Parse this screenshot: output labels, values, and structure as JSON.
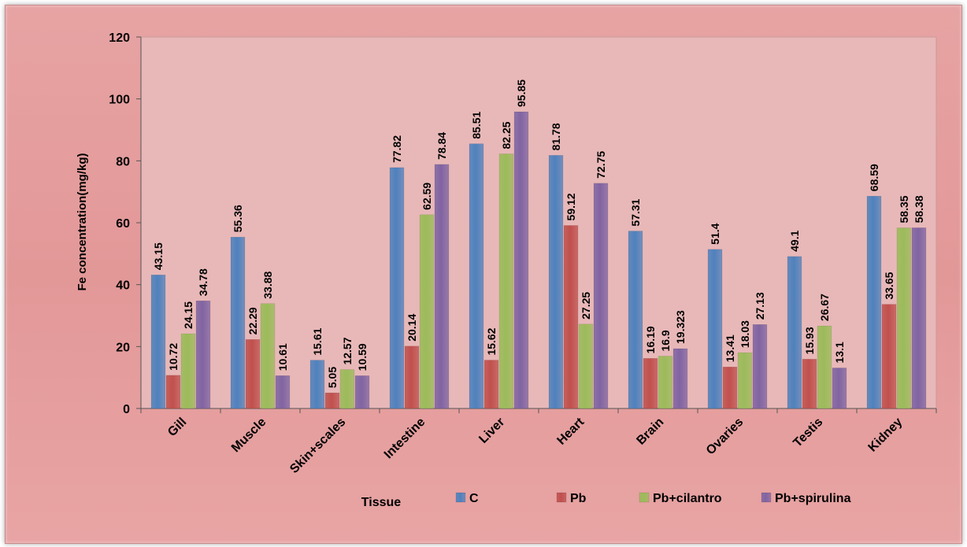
{
  "chart_data": {
    "type": "bar",
    "xlabel": "Tissue",
    "ylabel": "Fe concentration(mg/kg)",
    "ylim": [
      0,
      120
    ],
    "yticks": [
      0,
      20,
      40,
      60,
      80,
      100,
      120
    ],
    "grid": false,
    "legend_position": "bottom",
    "categories": [
      "Gill",
      "Muscle",
      "Skin+scales",
      "Intestine",
      "Liver",
      "Heart",
      "Brain",
      "Ovaries",
      "Testis",
      "Kidney"
    ],
    "series": [
      {
        "name": "C",
        "color": "#4f81bd",
        "values": [
          43.15,
          55.36,
          15.61,
          77.82,
          85.51,
          81.78,
          57.31,
          51.4,
          49.1,
          68.59
        ],
        "labels": [
          "43.15",
          "55.36",
          "15.61",
          "77.82",
          "85.51",
          "81.78",
          "57.31",
          "51.4",
          "49.1",
          "68.59"
        ]
      },
      {
        "name": "Pb",
        "color": "#c0504d",
        "values": [
          10.72,
          22.29,
          5.05,
          20.14,
          15.62,
          59.12,
          16.19,
          13.41,
          15.93,
          33.65
        ],
        "labels": [
          "10.72",
          "22.29",
          "5.05",
          "20.14",
          "15.62",
          "59.12",
          "16.19",
          "13.41",
          "15.93",
          "33.65"
        ]
      },
      {
        "name": "Pb+cilantro",
        "color": "#9bbb59",
        "values": [
          24.15,
          33.88,
          12.57,
          62.59,
          82.25,
          27.25,
          16.9,
          18.03,
          26.67,
          58.35
        ],
        "labels": [
          "24.15",
          "33.88",
          "12.57",
          "62.59",
          "82.25",
          "27.25",
          "16.9",
          "18.03",
          "26.67",
          "58.35"
        ]
      },
      {
        "name": "Pb+spirulina",
        "color": "#8064a2",
        "values": [
          34.78,
          10.61,
          10.59,
          78.84,
          95.85,
          72.75,
          19.323,
          27.13,
          13.1,
          58.38
        ],
        "labels": [
          "34.78",
          "10.61",
          "10.59",
          "78.84",
          "95.85",
          "72.75",
          "19.323",
          "27.13",
          "13.1",
          "58.38"
        ]
      }
    ]
  }
}
